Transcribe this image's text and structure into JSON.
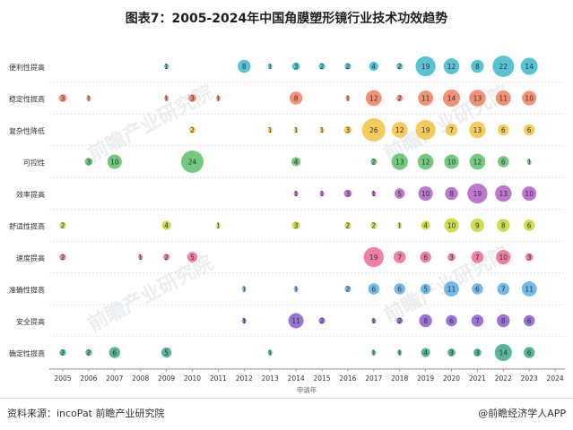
{
  "title": "图表7：2005-2024年中国角膜塑形镜行业技术功效趋势",
  "footer": {
    "source": "资料来源：incoPat 前瞻产业研究院",
    "brand": "@前瞻经济学人APP"
  },
  "watermark": "前瞻产业研究院",
  "colors": {
    "gridline": "#d9d9d9",
    "axis": "#999999"
  },
  "chart_data": {
    "type": "bubble",
    "title": "图表7：2005-2024年中国角膜塑形镜行业技术功效趋势",
    "xlabel": "申请年",
    "ylabel": "",
    "x": [
      "2005",
      "2006",
      "2007",
      "2008",
      "2009",
      "2010",
      "2011",
      "2012",
      "2013",
      "2014",
      "2015",
      "2016",
      "2017",
      "2018",
      "2019",
      "2020",
      "2021",
      "2022",
      "2023",
      "2024"
    ],
    "categories": [
      "便利性提高",
      "稳定性提高",
      "复杂性降低",
      "可控性",
      "效率提高",
      "舒适性提高",
      "速度提高",
      "准确性提高",
      "安全提高",
      "确定性提高"
    ],
    "series": [
      {
        "name": "便利性提高",
        "color": "#3db8c9",
        "values": {
          "2009": 1,
          "2012": 8,
          "2013": 1,
          "2014": 3,
          "2015": 2,
          "2016": 2,
          "2017": 4,
          "2018": 2,
          "2019": 19,
          "2020": 12,
          "2021": 8,
          "2022": 22,
          "2023": 14
        }
      },
      {
        "name": "稳定性提高",
        "color": "#ef7f5e",
        "values": {
          "2005": 3,
          "2006": 1,
          "2009": 1,
          "2010": 3,
          "2011": 1,
          "2014": 8,
          "2016": 1,
          "2017": 12,
          "2018": 2,
          "2019": 11,
          "2020": 14,
          "2021": 13,
          "2022": 11,
          "2023": 10
        }
      },
      {
        "name": "复杂性降低",
        "color": "#f5c242",
        "values": {
          "2010": 2,
          "2013": 1,
          "2014": 1,
          "2015": 1,
          "2016": 3,
          "2017": 26,
          "2018": 12,
          "2019": 19,
          "2020": 7,
          "2021": 13,
          "2022": 6,
          "2023": 6
        }
      },
      {
        "name": "可控性",
        "color": "#5cbf6b",
        "values": {
          "2006": 3,
          "2007": 10,
          "2010": 24,
          "2014": 4,
          "2017": 2,
          "2018": 13,
          "2019": 12,
          "2020": 10,
          "2021": 12,
          "2022": 6,
          "2023": 1
        }
      },
      {
        "name": "效率提高",
        "color": "#b25fc9",
        "values": {
          "2014": 1,
          "2015": 1,
          "2016": 3,
          "2017": 1,
          "2018": 5,
          "2019": 10,
          "2020": 8,
          "2021": 19,
          "2022": 13,
          "2023": 10
        }
      },
      {
        "name": "舒适性提高",
        "color": "#c8d632",
        "values": {
          "2005": 2,
          "2009": 4,
          "2011": 1,
          "2014": 3,
          "2016": 2,
          "2017": 2,
          "2018": 1,
          "2019": 4,
          "2020": 10,
          "2021": 9,
          "2022": 8,
          "2023": 6
        }
      },
      {
        "name": "速度提高",
        "color": "#ee6a8f",
        "values": {
          "2005": 2,
          "2008": 1,
          "2009": 2,
          "2010": 5,
          "2017": 19,
          "2018": 7,
          "2019": 6,
          "2020": 3,
          "2021": 7,
          "2022": 10,
          "2023": 3
        }
      },
      {
        "name": "准确性提高",
        "color": "#5aaee8",
        "values": {
          "2012": 1,
          "2014": 1,
          "2016": 2,
          "2017": 6,
          "2018": 6,
          "2019": 5,
          "2020": 11,
          "2021": 6,
          "2022": 7,
          "2023": 11
        }
      },
      {
        "name": "安全提高",
        "color": "#8a5bd1",
        "values": {
          "2012": 1,
          "2014": 11,
          "2015": 2,
          "2017": 1,
          "2018": 2,
          "2019": 8,
          "2020": 6,
          "2021": 7,
          "2022": 8,
          "2023": 6
        }
      },
      {
        "name": "确定性提高",
        "color": "#3aa98a",
        "values": {
          "2005": 2,
          "2006": 2,
          "2007": 6,
          "2009": 5,
          "2013": 1,
          "2017": 1,
          "2018": 1,
          "2019": 4,
          "2020": 3,
          "2021": 3,
          "2022": 14,
          "2023": 6
        }
      }
    ],
    "grid": true,
    "legend": "none"
  }
}
